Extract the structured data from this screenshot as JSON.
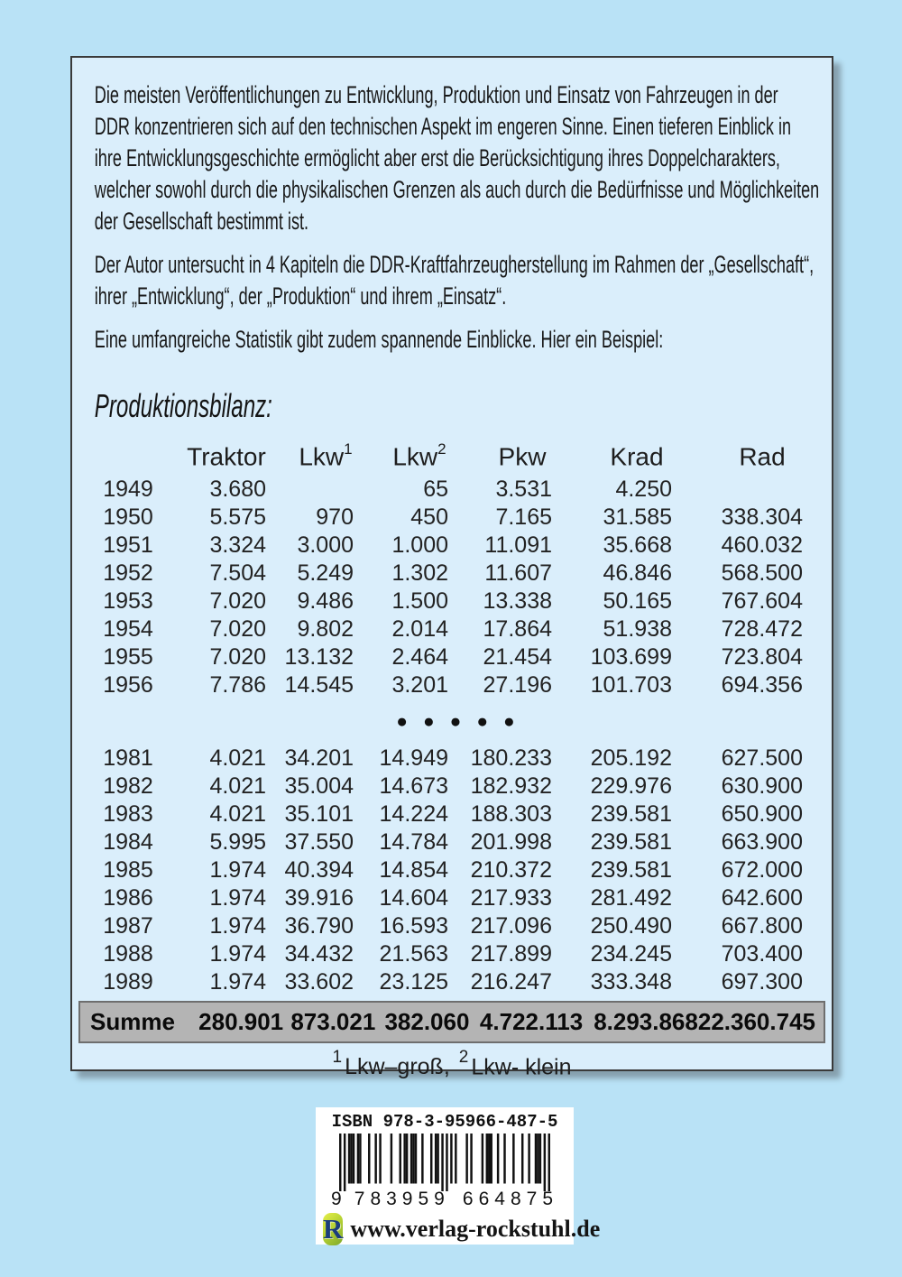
{
  "paragraphs": [
    {
      "lines": [
        "Die meisten Veröffentlichungen zu Entwicklung, Produktion und Einsatz von Fahrzeugen in der",
        "DDR konzentrieren sich auf den technischen Aspekt im engeren Sinne. Einen tieferen Einblick in",
        "ihre Entwicklungsgeschichte ermöglicht aber erst die Berücksichtigung ihres Doppelcharakters,",
        "welcher sowohl durch die physikalischen Grenzen als auch durch die Bedürfnisse und Möglichkeiten",
        "der Gesellschaft bestimmt ist."
      ]
    },
    {
      "lines": [
        "Der Autor untersucht in 4 Kapiteln die DDR-Kraftfahrzeugherstellung im Rahmen der „Gesellschaft“,",
        "ihrer „Entwicklung“, der „Produktion“ und ihrem „Einsatz“."
      ]
    },
    {
      "lines": [
        "Eine umfangreiche Statistik gibt zudem spannende Einblicke. Hier ein Beispiel:"
      ]
    }
  ],
  "section_title": "Produktionsbilanz:",
  "table": {
    "columns": [
      {
        "label": "Traktor",
        "sup": ""
      },
      {
        "label": "Lkw",
        "sup": "1"
      },
      {
        "label": "Lkw",
        "sup": "2"
      },
      {
        "label": "Pkw",
        "sup": ""
      },
      {
        "label": "Krad",
        "sup": ""
      },
      {
        "label": "Rad",
        "sup": ""
      }
    ],
    "dots_text": "●●●●●",
    "rows": [
      {
        "year": "1949",
        "values": [
          "3.680",
          "",
          "65",
          "3.531",
          "4.250",
          ""
        ]
      },
      {
        "year": "1950",
        "values": [
          "5.575",
          "970",
          "450",
          "7.165",
          "31.585",
          "338.304"
        ]
      },
      {
        "year": "1951",
        "values": [
          "3.324",
          "3.000",
          "1.000",
          "11.091",
          "35.668",
          "460.032"
        ]
      },
      {
        "year": "1952",
        "values": [
          "7.504",
          "5.249",
          "1.302",
          "11.607",
          "46.846",
          "568.500"
        ]
      },
      {
        "year": "1953",
        "values": [
          "7.020",
          "9.486",
          "1.500",
          "13.338",
          "50.165",
          "767.604"
        ]
      },
      {
        "year": "1954",
        "values": [
          "7.020",
          "9.802",
          "2.014",
          "17.864",
          "51.938",
          "728.472"
        ]
      },
      {
        "year": "1955",
        "values": [
          "7.020",
          "13.132",
          "2.464",
          "21.454",
          "103.699",
          "723.804"
        ]
      },
      {
        "year": "1956",
        "values": [
          "7.786",
          "14.545",
          "3.201",
          "27.196",
          "101.703",
          "694.356"
        ]
      },
      {
        "dots": true
      },
      {
        "year": "1981",
        "values": [
          "4.021",
          "34.201",
          "14.949",
          "180.233",
          "205.192",
          "627.500"
        ]
      },
      {
        "year": "1982",
        "values": [
          "4.021",
          "35.004",
          "14.673",
          "182.932",
          "229.976",
          "630.900"
        ]
      },
      {
        "year": "1983",
        "values": [
          "4.021",
          "35.101",
          "14.224",
          "188.303",
          "239.581",
          "650.900"
        ]
      },
      {
        "year": "1984",
        "values": [
          "5.995",
          "37.550",
          "14.784",
          "201.998",
          "239.581",
          "663.900"
        ]
      },
      {
        "year": "1985",
        "values": [
          "1.974",
          "40.394",
          "14.854",
          "210.372",
          "239.581",
          "672.000"
        ]
      },
      {
        "year": "1986",
        "values": [
          "1.974",
          "39.916",
          "14.604",
          "217.933",
          "281.492",
          "642.600"
        ]
      },
      {
        "year": "1987",
        "values": [
          "1.974",
          "36.790",
          "16.593",
          "217.096",
          "250.490",
          "667.800"
        ]
      },
      {
        "year": "1988",
        "values": [
          "1.974",
          "34.432",
          "21.563",
          "217.899",
          "234.245",
          "703.400"
        ]
      },
      {
        "year": "1989",
        "values": [
          "1.974",
          "33.602",
          "23.125",
          "216.247",
          "333.348",
          "697.300"
        ]
      }
    ],
    "summe": {
      "label": "Summe",
      "values": [
        "280.901",
        "873.021",
        "382.060",
        "4.722.113",
        "8.293.868",
        "22.360.745"
      ]
    },
    "footnote": {
      "sup1": "1",
      "part1": "Lkw–groß,",
      "sup2": "2",
      "part2": "Lkw- klein"
    }
  },
  "isbn": {
    "label": "ISBN 978-3-95966-487-5",
    "digit_groups": [
      "9",
      "783959",
      "664875"
    ],
    "publisher_url": "www.verlag-rockstuhl.de",
    "logo_letter": "R"
  },
  "colors": {
    "outer_background": "#b9e2f6",
    "panel_background": "#daeefb",
    "panel_border": "#3a3a3a",
    "summe_band_background": "#b4b4b4",
    "summe_band_border": "#6e6e6e",
    "logo_green": "#b8d335",
    "logo_letter_blue": "#1b3d7d"
  }
}
